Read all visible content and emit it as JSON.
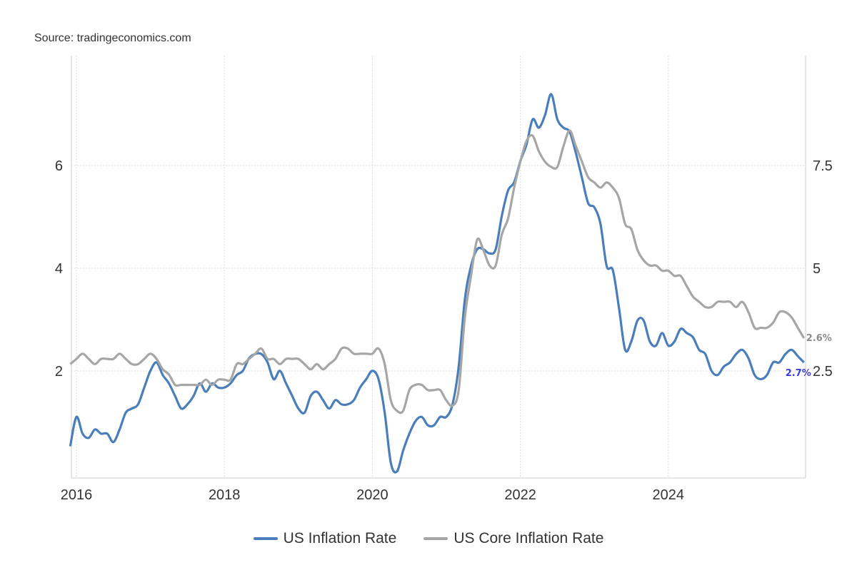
{
  "source": "Source: tradingeconomics.com",
  "chart_data": {
    "type": "line",
    "title": "",
    "xlabel": "",
    "ylabel": "",
    "x_ticks": [
      "2016",
      "2018",
      "2020",
      "2022",
      "2024"
    ],
    "y_left_ticks": [
      "2",
      "4",
      "6"
    ],
    "y_right_ticks": [
      "2.5",
      "5",
      "7.5"
    ],
    "grid": true,
    "legend_position": "bottom",
    "start": "2015-12",
    "series": [
      {
        "name": "US Inflation Rate",
        "color": "#4a7ebb",
        "axis": "left",
        "end_label": "2.7%",
        "end_label_color": "#3a3adc",
        "values": [
          0.7,
          1.4,
          1.0,
          0.9,
          1.1,
          1.0,
          1.0,
          0.8,
          1.1,
          1.5,
          1.6,
          1.7,
          2.1,
          2.5,
          2.7,
          2.4,
          2.2,
          1.9,
          1.6,
          1.7,
          1.9,
          2.2,
          2.0,
          2.2,
          2.1,
          2.1,
          2.2,
          2.4,
          2.5,
          2.8,
          2.9,
          2.9,
          2.7,
          2.3,
          2.5,
          2.2,
          1.9,
          1.6,
          1.5,
          1.9,
          2.0,
          1.8,
          1.6,
          1.8,
          1.7,
          1.7,
          1.8,
          2.1,
          2.3,
          2.5,
          2.3,
          1.5,
          0.3,
          0.1,
          0.6,
          1.0,
          1.3,
          1.4,
          1.2,
          1.2,
          1.4,
          1.4,
          1.7,
          2.6,
          4.2,
          5.0,
          5.4,
          5.4,
          5.3,
          5.4,
          6.2,
          6.8,
          7.0,
          7.5,
          7.9,
          8.5,
          8.3,
          8.6,
          9.1,
          8.5,
          8.3,
          8.2,
          7.7,
          7.1,
          6.5,
          6.4,
          6.0,
          5.0,
          4.9,
          4.0,
          3.0,
          3.2,
          3.7,
          3.7,
          3.2,
          3.1,
          3.4,
          3.1,
          3.2,
          3.5,
          3.4,
          3.3,
          3.0,
          2.9,
          2.5,
          2.4,
          2.6,
          2.7,
          2.9,
          3.0,
          2.8,
          2.4,
          2.3,
          2.4,
          2.7,
          2.7,
          2.9,
          3.0,
          2.85,
          2.7
        ]
      },
      {
        "name": "US Core Inflation Rate",
        "color": "#a6a6a6",
        "axis": "right",
        "end_label": "2.6%",
        "end_label_color": "#8c8c8c",
        "values": [
          2.1,
          2.2,
          2.3,
          2.2,
          2.1,
          2.2,
          2.2,
          2.2,
          2.3,
          2.2,
          2.1,
          2.1,
          2.2,
          2.3,
          2.2,
          2.0,
          1.9,
          1.7,
          1.7,
          1.7,
          1.7,
          1.7,
          1.8,
          1.7,
          1.8,
          1.8,
          1.8,
          2.1,
          2.1,
          2.2,
          2.3,
          2.4,
          2.2,
          2.2,
          2.1,
          2.2,
          2.2,
          2.2,
          2.1,
          2.0,
          2.1,
          2.0,
          2.1,
          2.2,
          2.4,
          2.4,
          2.3,
          2.3,
          2.3,
          2.3,
          2.4,
          2.1,
          1.4,
          1.2,
          1.2,
          1.6,
          1.7,
          1.7,
          1.6,
          1.6,
          1.6,
          1.4,
          1.3,
          1.6,
          3.0,
          3.8,
          4.5,
          4.3,
          4.0,
          4.0,
          4.6,
          4.9,
          5.5,
          6.0,
          6.4,
          6.5,
          6.2,
          6.0,
          5.9,
          5.9,
          6.3,
          6.6,
          6.3,
          6.0,
          5.7,
          5.6,
          5.5,
          5.6,
          5.5,
          5.3,
          4.8,
          4.7,
          4.3,
          4.1,
          4.0,
          4.0,
          3.9,
          3.9,
          3.8,
          3.8,
          3.6,
          3.4,
          3.3,
          3.2,
          3.2,
          3.3,
          3.3,
          3.3,
          3.2,
          3.3,
          3.1,
          2.8,
          2.8,
          2.8,
          2.9,
          3.1,
          3.1,
          3.0,
          2.8,
          2.6
        ]
      }
    ]
  }
}
